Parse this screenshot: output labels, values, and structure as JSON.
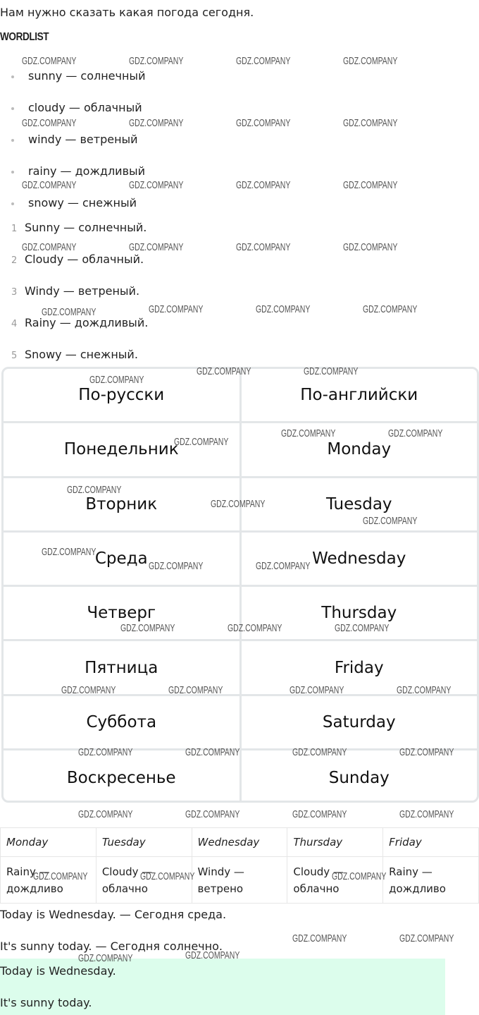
{
  "intro": "Нам нужно сказать какая погода сегодня.",
  "wordlist_heading": "WORDLIST",
  "wordlist": [
    "sunny — солнечный",
    "cloudy — облачный",
    "windy — ветреный",
    "rainy — дождливый",
    "snowy — снежный"
  ],
  "numbered": [
    {
      "n": "1",
      "text": "Sunny — солнечный."
    },
    {
      "n": "2",
      "text": "Cloudy — облачный."
    },
    {
      "n": "3",
      "text": "Windy — ветреный."
    },
    {
      "n": "4",
      "text": "Rainy — дождливый."
    },
    {
      "n": "5",
      "text": "Snowy — снежный."
    }
  ],
  "days_table": {
    "headers": [
      "По-русски",
      "По-английски"
    ],
    "rows": [
      [
        "Понедельник",
        "Monday"
      ],
      [
        "Вторник",
        "Tuesday"
      ],
      [
        "Среда",
        "Wednesday"
      ],
      [
        "Четверг",
        "Thursday"
      ],
      [
        "Пятница",
        "Friday"
      ],
      [
        "Суббота",
        "Saturday"
      ],
      [
        "Воскресенье",
        "Sunday"
      ]
    ]
  },
  "weather_table": {
    "headers": [
      "Monday",
      "Tuesday",
      "Wednesday",
      "Thursday",
      "Friday"
    ],
    "cells": [
      [
        "Rainy —",
        "дождливо"
      ],
      [
        "Cloudy —",
        "облачно"
      ],
      [
        "Windy —",
        "ветрено"
      ],
      [
        "Cloudy —",
        "облачно"
      ],
      [
        "Rainy —",
        "дождливо"
      ]
    ]
  },
  "sentences": [
    "Today is Wednesday. — Сегодня среда.",
    "It's sunny today. — Сегодня солнечно."
  ],
  "answer": [
    "Today is Wednesday.",
    "It's sunny today."
  ],
  "answer_bg": "#dcfdec",
  "watermark": "GDZ.COMPANY"
}
